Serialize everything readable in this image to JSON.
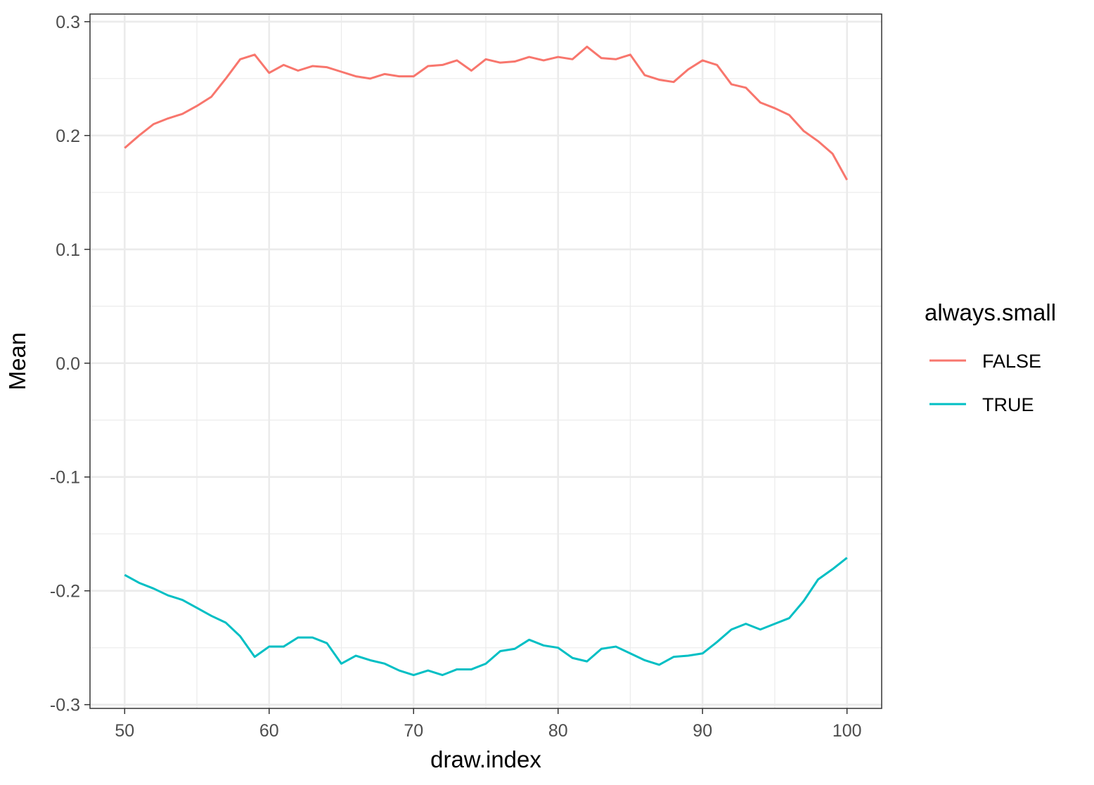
{
  "chart_data": {
    "type": "line",
    "title": "",
    "xlabel": "draw.index",
    "ylabel": "Mean",
    "xlim": [
      47.6,
      102.4
    ],
    "ylim": [
      -0.3033,
      0.3067
    ],
    "x_ticks": [
      50,
      60,
      70,
      80,
      90,
      100
    ],
    "x_tick_labels": [
      "50",
      "60",
      "70",
      "80",
      "90",
      "100"
    ],
    "y_ticks": [
      -0.3,
      -0.2,
      -0.1,
      0.0,
      0.1,
      0.2,
      0.3
    ],
    "y_tick_labels": [
      "-0.3",
      "-0.2",
      "-0.1",
      "0.0",
      "0.1",
      "0.2",
      "0.3"
    ],
    "x_minor_ticks": [
      55,
      65,
      75,
      85,
      95
    ],
    "y_minor_ticks": [
      -0.25,
      -0.15,
      -0.05,
      0.05,
      0.15,
      0.25
    ],
    "grid": true,
    "legend": {
      "title": "always.small",
      "position": "right"
    },
    "x": [
      50,
      51,
      52,
      53,
      54,
      55,
      56,
      57,
      58,
      59,
      60,
      61,
      62,
      63,
      64,
      65,
      66,
      67,
      68,
      69,
      70,
      71,
      72,
      73,
      74,
      75,
      76,
      77,
      78,
      79,
      80,
      81,
      82,
      83,
      84,
      85,
      86,
      87,
      88,
      89,
      90,
      91,
      92,
      93,
      94,
      95,
      96,
      97,
      98,
      99,
      100
    ],
    "series": [
      {
        "name": "FALSE",
        "color": "#F8766D",
        "values": [
          0.189,
          0.2,
          0.21,
          0.215,
          0.219,
          0.226,
          0.234,
          0.25,
          0.267,
          0.271,
          0.255,
          0.262,
          0.257,
          0.261,
          0.26,
          0.256,
          0.252,
          0.25,
          0.254,
          0.252,
          0.252,
          0.261,
          0.262,
          0.266,
          0.257,
          0.267,
          0.264,
          0.265,
          0.269,
          0.266,
          0.269,
          0.267,
          0.278,
          0.268,
          0.267,
          0.271,
          0.253,
          0.249,
          0.247,
          0.258,
          0.266,
          0.262,
          0.245,
          0.242,
          0.229,
          0.224,
          0.218,
          0.204,
          0.195,
          0.184,
          0.161
        ]
      },
      {
        "name": "TRUE",
        "color": "#00BFC4",
        "values": [
          -0.186,
          -0.193,
          -0.198,
          -0.204,
          -0.208,
          -0.215,
          -0.222,
          -0.228,
          -0.24,
          -0.258,
          -0.249,
          -0.249,
          -0.241,
          -0.241,
          -0.246,
          -0.264,
          -0.257,
          -0.261,
          -0.264,
          -0.27,
          -0.274,
          -0.27,
          -0.274,
          -0.269,
          -0.269,
          -0.264,
          -0.253,
          -0.251,
          -0.243,
          -0.248,
          -0.25,
          -0.259,
          -0.262,
          -0.251,
          -0.249,
          -0.255,
          -0.261,
          -0.265,
          -0.258,
          -0.257,
          -0.255,
          -0.245,
          -0.234,
          -0.229,
          -0.234,
          -0.229,
          -0.224,
          -0.209,
          -0.19,
          -0.181,
          -0.171
        ]
      }
    ]
  }
}
